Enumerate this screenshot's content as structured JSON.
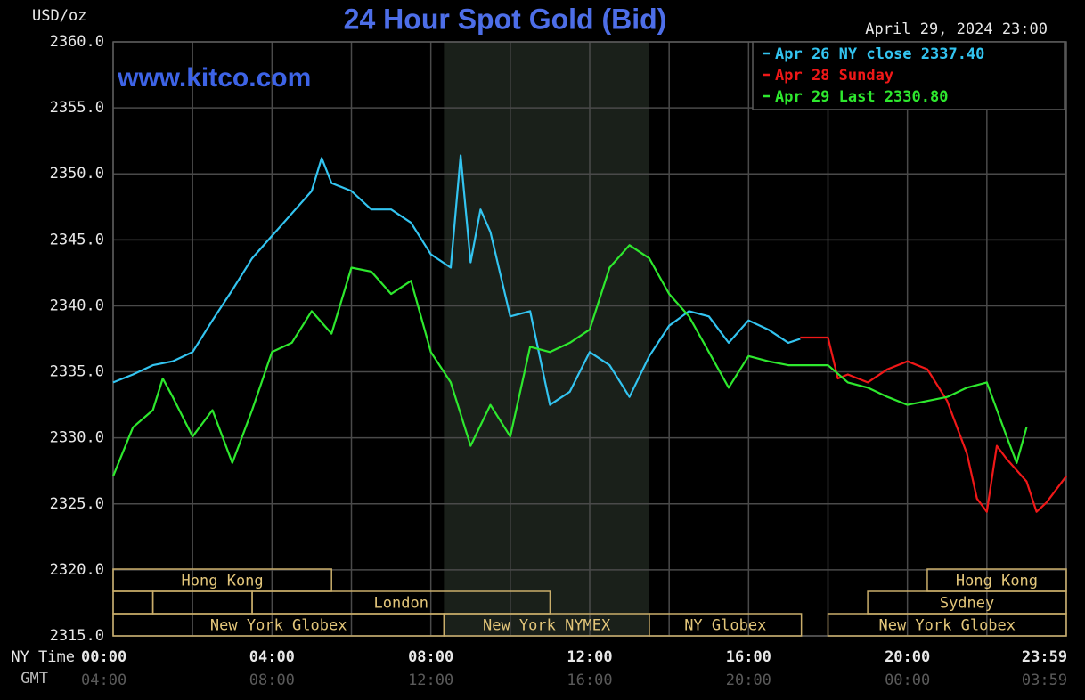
{
  "chart_data": {
    "type": "line",
    "title": "24 Hour Spot Gold (Bid)",
    "y_unit": "USD/oz",
    "watermark": "www.kitco.com",
    "timestamp": "April 29, 2024 23:00",
    "x_axis_names": [
      "NY Time",
      "GMT"
    ],
    "xlim": [
      0,
      24
    ],
    "xticks": [
      {
        "value": 0,
        "label": "00:00"
      },
      {
        "value": 4,
        "label": "04:00"
      },
      {
        "value": 8,
        "label": "08:00"
      },
      {
        "value": 12,
        "label": "12:00"
      },
      {
        "value": 16,
        "label": "16:00"
      },
      {
        "value": 20,
        "label": "20:00"
      },
      {
        "value": 23.98,
        "label": "23:59"
      }
    ],
    "gmt_tick_labels": [
      "04:00",
      "08:00",
      "12:00",
      "16:00",
      "20:00",
      "00:00",
      "03:59"
    ],
    "xgrid": [
      2,
      6,
      10,
      14,
      18,
      22
    ],
    "ylim": [
      2315,
      2360
    ],
    "yticks": [
      {
        "value": 2315,
        "label": "2315.0"
      },
      {
        "value": 2320,
        "label": "2320.0"
      },
      {
        "value": 2325,
        "label": "2325.0"
      },
      {
        "value": 2330,
        "label": "2330.0"
      },
      {
        "value": 2335,
        "label": "2335.0"
      },
      {
        "value": 2340,
        "label": "2340.0"
      },
      {
        "value": 2345,
        "label": "2345.0"
      },
      {
        "value": 2350,
        "label": "2350.0"
      },
      {
        "value": 2355,
        "label": "2355.0"
      },
      {
        "value": 2360,
        "label": "2360.0"
      }
    ],
    "grid": true,
    "shaded": [
      8.33,
      13.5
    ],
    "legend": "upper right",
    "sessions": [
      {
        "name": "Hong Kong",
        "row": 0,
        "start": 0,
        "end": 5.5
      },
      {
        "name": "Hong Kong",
        "row": 0,
        "start": 20.5,
        "end": 24
      },
      {
        "row": 1,
        "start": 0,
        "end": 1
      },
      {
        "row": 1,
        "start": 1,
        "end": 3.5
      },
      {
        "name": "London",
        "row": 1,
        "start": 3.5,
        "end": 11
      },
      {
        "name": "Sydney",
        "row": 1,
        "start": 19,
        "end": 24
      },
      {
        "name": "New York Globex",
        "row": 2,
        "start": 0,
        "end": 8.33
      },
      {
        "name": "New York NYMEX",
        "row": 2,
        "start": 8.33,
        "end": 13.5
      },
      {
        "name": "NY Globex",
        "row": 2,
        "start": 13.5,
        "end": 17.33
      },
      {
        "name": "New York Globex",
        "row": 2,
        "start": 18,
        "end": 24
      }
    ],
    "series": [
      {
        "name": "Apr 26 NY close 2337.40",
        "color": "#33c4f0",
        "x": [
          0,
          0.5,
          1,
          1.5,
          2,
          2.5,
          3,
          3.5,
          4,
          4.5,
          5,
          5.25,
          5.5,
          6,
          6.5,
          7,
          7.5,
          8,
          8.5,
          8.75,
          9,
          9.25,
          9.5,
          10,
          10.5,
          11,
          11.5,
          12,
          12.5,
          13,
          13.5,
          14,
          14.5,
          15,
          15.5,
          16,
          16.5,
          17,
          17.3
        ],
        "values": [
          2334.2,
          2334.8,
          2335.5,
          2335.8,
          2336.5,
          2338.9,
          2341.2,
          2343.6,
          2345.3,
          2347.0,
          2348.7,
          2351.2,
          2349.3,
          2348.7,
          2347.3,
          2347.3,
          2346.3,
          2343.9,
          2342.9,
          2351.4,
          2343.3,
          2347.3,
          2345.6,
          2339.2,
          2339.6,
          2332.5,
          2333.5,
          2336.5,
          2335.5,
          2333.1,
          2336.2,
          2338.5,
          2339.6,
          2339.2,
          2337.2,
          2338.9,
          2338.2,
          2337.2,
          2337.5
        ]
      },
      {
        "name": "Apr 28 Sunday",
        "color": "#f01818",
        "x": [
          17.3,
          18,
          18.25,
          18.5,
          19,
          19.5,
          20,
          20.5,
          21,
          21.5,
          21.75,
          22,
          22.25,
          22.5,
          23,
          23.25,
          23.5,
          24
        ],
        "values": [
          2337.6,
          2337.6,
          2334.5,
          2334.8,
          2334.2,
          2335.2,
          2335.8,
          2335.2,
          2332.8,
          2328.8,
          2325.4,
          2324.4,
          2329.4,
          2328.4,
          2326.7,
          2324.4,
          2325.1,
          2327.1
        ]
      },
      {
        "name": "Apr 29 Last 2330.80",
        "color": "#2ee82e",
        "x": [
          0,
          0.5,
          1,
          1.25,
          1.5,
          2,
          2.5,
          3,
          3.5,
          4,
          4.5,
          5,
          5.5,
          6,
          6.5,
          7,
          7.5,
          8,
          8.5,
          9,
          9.5,
          10,
          10.5,
          11,
          11.5,
          12,
          12.5,
          13,
          13.5,
          14,
          14.5,
          15,
          15.5,
          16,
          16.5,
          17,
          18,
          18.5,
          19,
          19.5,
          20,
          20.5,
          21,
          21.5,
          22,
          22.5,
          22.75,
          23
        ],
        "values": [
          2327.1,
          2330.8,
          2332.1,
          2334.5,
          2333.1,
          2330.1,
          2332.1,
          2328.1,
          2332.1,
          2336.5,
          2337.2,
          2339.6,
          2337.9,
          2342.9,
          2342.6,
          2340.9,
          2341.9,
          2336.5,
          2334.2,
          2329.4,
          2332.5,
          2330.1,
          2336.9,
          2336.5,
          2337.2,
          2338.2,
          2342.9,
          2344.6,
          2343.6,
          2340.9,
          2339.2,
          2336.5,
          2333.8,
          2336.2,
          2335.8,
          2335.5,
          2335.5,
          2334.2,
          2333.8,
          2333.1,
          2332.5,
          2332.8,
          2333.1,
          2333.8,
          2334.2,
          2330.1,
          2328.1,
          2330.8
        ]
      }
    ]
  }
}
